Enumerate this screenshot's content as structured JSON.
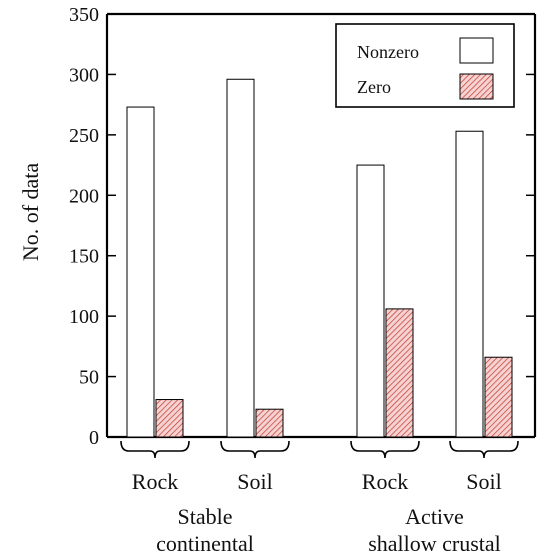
{
  "chart_data": {
    "type": "bar",
    "ylabel": "No. of data",
    "xlabel": "",
    "ylim": [
      0,
      350
    ],
    "yticks": [
      0,
      50,
      100,
      150,
      200,
      250,
      300,
      350
    ],
    "legend_position": "top-right",
    "series": [
      {
        "name": "Nonzero",
        "values": [
          273,
          296,
          225,
          253
        ],
        "fill": "#ffffff",
        "pattern": "none"
      },
      {
        "name": "Zero",
        "values": [
          31,
          23,
          106,
          66
        ],
        "fill": "#f6d2d2",
        "pattern": "diagonal-hatch",
        "hatch_color": "#c0392b"
      }
    ],
    "categories": [
      {
        "label": "Rock",
        "group": "stable"
      },
      {
        "label": "Soil",
        "group": "stable"
      },
      {
        "label": "Rock",
        "group": "active"
      },
      {
        "label": "Soil",
        "group": "active"
      }
    ],
    "groups": [
      {
        "id": "stable",
        "lines": [
          "Stable",
          "continental"
        ]
      },
      {
        "id": "active",
        "lines": [
          "Active",
          "shallow crustal"
        ]
      }
    ]
  }
}
